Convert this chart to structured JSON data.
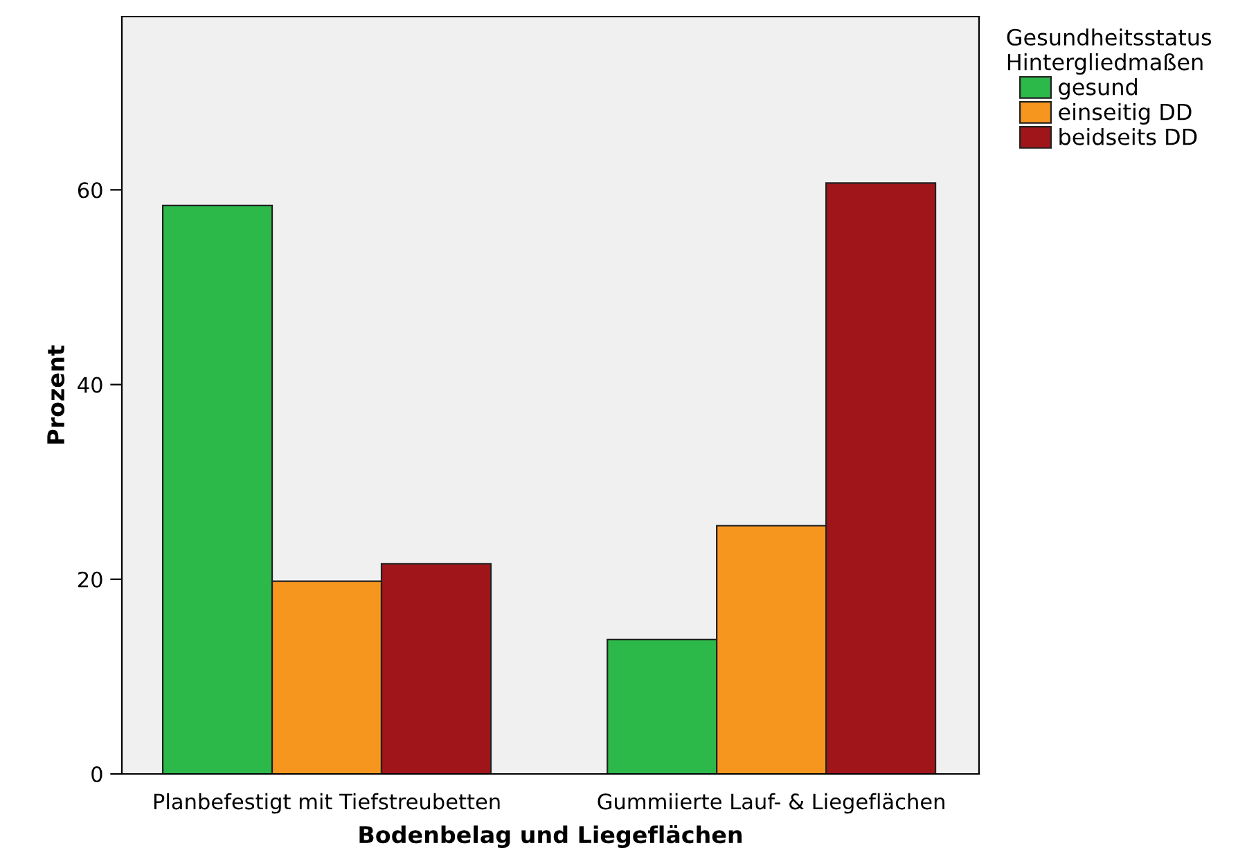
{
  "chart_data": {
    "type": "bar",
    "xlabel": "Bodenbelag und Liegeflächen",
    "ylabel": "Prozent",
    "legend_title": "Gesundheitsstatus\nHintergliedmaßen",
    "categories": [
      "Planbefestigt mit Tiefstreubetten",
      "Gummiierte Lauf- & Liegeflächen"
    ],
    "series": [
      {
        "name": "gesund",
        "color": "#2db84a",
        "values": [
          58.4,
          13.8
        ]
      },
      {
        "name": "einseitig DD",
        "color": "#f7961f",
        "values": [
          19.8,
          25.5
        ]
      },
      {
        "name": "beidseits DD",
        "color": "#a0151a",
        "values": [
          21.6,
          60.7
        ]
      }
    ],
    "ylim": [
      0,
      77.8
    ],
    "yticks": [
      0,
      20,
      40,
      60
    ],
    "grid": false,
    "legend": "top right"
  }
}
